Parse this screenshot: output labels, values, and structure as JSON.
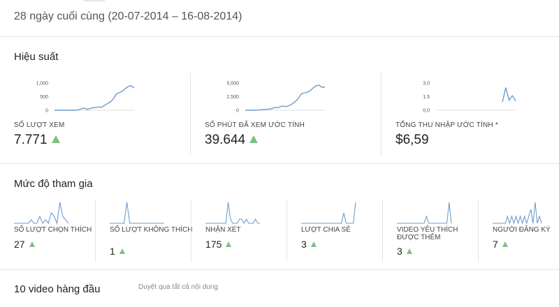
{
  "header": {
    "date_range": "28 ngày cuối cùng (20-07-2014 – 16-08-2014)"
  },
  "performance": {
    "title": "Hiệu suất",
    "metrics": [
      {
        "label": "SỐ LƯỢT XEM",
        "value": "7.771",
        "trend": "up",
        "ticks": [
          "1,000",
          "500",
          "0"
        ],
        "ylim": [
          0,
          1000
        ],
        "series": [
          0,
          0,
          0,
          0,
          0,
          0,
          0,
          0,
          10,
          50,
          80,
          30,
          60,
          90,
          100,
          120,
          110,
          180,
          250,
          310,
          420,
          600,
          650,
          700,
          790,
          880,
          900,
          820
        ]
      },
      {
        "label": "SỐ PHÚT ĐÃ XEM ƯỚC TÍNH",
        "value": "39.644",
        "trend": "up",
        "ticks": [
          "5,000",
          "2,500",
          "0"
        ],
        "ylim": [
          0,
          5000
        ],
        "series": [
          0,
          0,
          0,
          0,
          30,
          80,
          120,
          160,
          200,
          300,
          500,
          450,
          700,
          750,
          650,
          900,
          1200,
          1600,
          2200,
          3000,
          3200,
          3300,
          3600,
          4100,
          4500,
          4600,
          4200,
          4300
        ]
      },
      {
        "label": "TỔNG THU NHẬP ƯỚC TÍNH *",
        "value": "$6,59",
        "trend": "none",
        "ticks": [
          "3.0",
          "1.5",
          "0.0"
        ],
        "ylim": [
          0,
          3
        ],
        "series": [
          null,
          null,
          null,
          null,
          null,
          null,
          null,
          null,
          null,
          null,
          null,
          null,
          null,
          null,
          null,
          null,
          null,
          null,
          null,
          null,
          0.9,
          2.5,
          1.1,
          1.6,
          1.0
        ]
      }
    ]
  },
  "engagement": {
    "title": "Mức độ tham gia",
    "metrics": [
      {
        "label": "SỐ LƯỢT CHỌN THÍCH",
        "value": "27",
        "series": [
          0,
          0,
          0,
          0,
          0,
          0,
          1,
          0,
          0,
          2,
          0,
          1,
          0,
          3,
          2,
          0,
          6,
          2,
          1,
          0
        ]
      },
      {
        "label": "SỐ LƯỢT KHÔNG THÍCH",
        "value": "1",
        "series": [
          0,
          0,
          0,
          0,
          0,
          0,
          1,
          0,
          0,
          0,
          0,
          0,
          0,
          0,
          0,
          0,
          0,
          0,
          0,
          0
        ]
      },
      {
        "label": "NHẬN XÉT",
        "value": "175",
        "series": [
          0,
          0,
          0,
          0,
          0,
          0,
          0,
          0,
          0,
          0,
          5,
          1,
          0,
          0,
          0,
          1,
          1,
          0,
          1,
          0,
          0,
          0,
          1,
          0,
          0
        ]
      },
      {
        "label": "LƯỢT CHIA SẺ",
        "value": "3",
        "series": [
          0,
          0,
          0,
          0,
          0,
          0,
          0,
          0,
          0,
          0,
          0,
          0,
          0,
          0,
          0,
          0,
          0,
          0,
          2,
          0,
          0,
          0,
          0,
          4
        ]
      },
      {
        "label": "VIDEO YÊU THÍCH ĐƯỢC THÊM",
        "value": "3",
        "series": [
          0,
          0,
          0,
          0,
          0,
          0,
          0,
          0,
          0,
          0,
          0,
          0,
          0,
          1,
          0,
          0,
          0,
          0,
          0,
          0,
          0,
          0,
          0,
          3,
          0
        ]
      },
      {
        "label": "NGƯỜI ĐĂNG KÝ",
        "value": "7",
        "series": [
          0,
          0,
          0,
          0,
          0,
          0,
          0,
          1,
          0,
          1,
          0,
          1,
          0,
          1,
          0,
          1,
          0,
          1,
          2,
          0,
          3,
          0,
          1,
          0
        ]
      }
    ]
  },
  "top_videos": {
    "title": "10 video hàng đầu",
    "browse_label": "Duyệt qua tất cả nội dung"
  },
  "colors": {
    "line": "#6f9ccc",
    "up": "#7fbf80",
    "divider": "#e5e5e5"
  }
}
